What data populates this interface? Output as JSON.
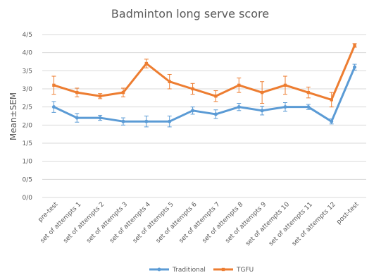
{
  "chart_data": {
    "type": "line",
    "title": "Badminton long serve score",
    "ylabel": "Mean±SEM",
    "xlabel": "",
    "ylim": [
      0,
      4.5
    ],
    "ytick_values": [
      0,
      0.5,
      1.0,
      1.5,
      2.0,
      2.5,
      3.0,
      3.5,
      4.0,
      4.5
    ],
    "ytick_labels": [
      "0/0",
      "0/5",
      "1/0",
      "1/5",
      "2/0",
      "2/5",
      "3/0",
      "3/5",
      "4/0",
      "4/5"
    ],
    "grid": true,
    "legend_position": "bottom",
    "categories": [
      "pre-test",
      "set of attempts 1",
      "set of attempts 2",
      "set of attempts 3",
      "set of attempts 4",
      "set of attempts 5",
      "set of attempts 6",
      "set of attempts 7",
      "set of attempts 8",
      "set of attempts 9",
      "set of attempts 10",
      "set of attempts 11",
      "set of attempts 12",
      "post-test"
    ],
    "series": [
      {
        "name": "Traditional",
        "color": "#5b9bd5",
        "values": [
          2.5,
          2.2,
          2.2,
          2.1,
          2.1,
          2.1,
          2.4,
          2.3,
          2.5,
          2.4,
          2.5,
          2.5,
          2.1,
          3.6
        ],
        "errors": [
          0.15,
          0.12,
          0.07,
          0.1,
          0.15,
          0.15,
          0.1,
          0.12,
          0.1,
          0.12,
          0.12,
          0.07,
          0.07,
          0.08
        ]
      },
      {
        "name": "TGFU",
        "color": "#ed7d31",
        "values": [
          3.1,
          2.9,
          2.8,
          2.9,
          3.7,
          3.2,
          3.0,
          2.8,
          3.1,
          2.9,
          3.1,
          2.9,
          2.7,
          4.2
        ],
        "errors": [
          0.25,
          0.12,
          0.07,
          0.12,
          0.12,
          0.2,
          0.15,
          0.15,
          0.2,
          0.3,
          0.25,
          0.15,
          0.2,
          0.05
        ]
      }
    ]
  }
}
